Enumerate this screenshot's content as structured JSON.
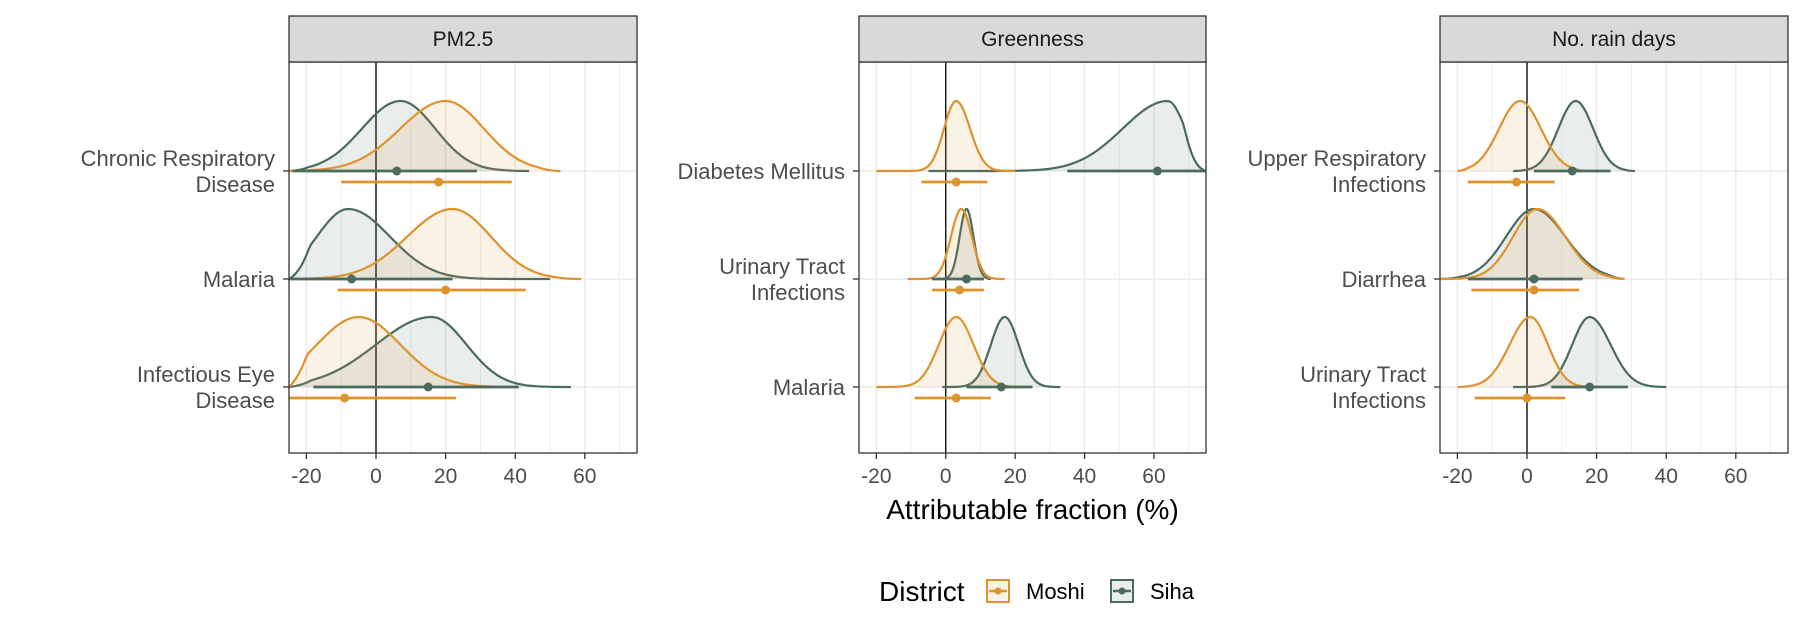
{
  "colors": {
    "Moshi": "#E0922F",
    "Siha": "#4A6B5D",
    "strip_bg": "#D9D9D9",
    "grid": "#EBEBEB"
  },
  "chart_data": {
    "type": "density-ridge with point-interval",
    "xlabel": "Attributable fraction (%)",
    "xlim": [
      -25,
      75
    ],
    "xticks": [
      -20,
      0,
      20,
      40,
      60
    ],
    "grid": true,
    "legend": {
      "title": "District",
      "position": "bottom",
      "entries": [
        "Moshi",
        "Siha"
      ]
    },
    "panels": [
      {
        "title": "PM2.5",
        "categories": [
          "Chronic Respiratory Disease",
          "Malaria",
          "Infectious Eye Disease"
        ],
        "category_lines": [
          [
            "Chronic Respiratory",
            "Disease"
          ],
          [
            "Malaria"
          ],
          [
            "Infectious Eye",
            "Disease"
          ]
        ],
        "rows": [
          {
            "series": [
              {
                "name": "Siha",
                "median": 6,
                "ci": [
                  -24,
                  29
                ],
                "density": {
                  "range": [
                    -25,
                    44
                  ],
                  "peak": 7,
                  "sd_left": 11,
                  "sd_right": 10
                }
              },
              {
                "name": "Moshi",
                "median": 18,
                "ci": [
                  -10,
                  39
                ],
                "density": {
                  "range": [
                    -25,
                    53
                  ],
                  "peak": 20,
                  "sd_left": 13,
                  "sd_right": 11
                }
              }
            ]
          },
          {
            "series": [
              {
                "name": "Siha",
                "median": -7,
                "ci": [
                  -25,
                  22
                ],
                "density": {
                  "range": [
                    -25,
                    50
                  ],
                  "peak": -8,
                  "sd_left": 9,
                  "sd_right": 12
                }
              },
              {
                "name": "Moshi",
                "median": 20,
                "ci": [
                  -11,
                  43
                ],
                "density": {
                  "range": [
                    -25,
                    59
                  ],
                  "peak": 22,
                  "sd_left": 13,
                  "sd_right": 11
                }
              }
            ]
          },
          {
            "series": [
              {
                "name": "Siha",
                "median": 15,
                "ci": [
                  -18,
                  41
                ],
                "density": {
                  "range": [
                    -25,
                    56
                  ],
                  "peak": 16,
                  "sd_left": 16,
                  "sd_right": 10
                }
              },
              {
                "name": "Moshi",
                "median": -9,
                "ci": [
                  -25,
                  23
                ],
                "density": {
                  "range": [
                    -25,
                    41
                  ],
                  "peak": -5,
                  "sd_left": 12,
                  "sd_right": 12
                }
              }
            ]
          }
        ]
      },
      {
        "title": "Greenness",
        "categories": [
          "Diabetes Mellitus",
          "Urinary Tract Infections",
          "Malaria"
        ],
        "category_lines": [
          [
            "Diabetes Mellitus"
          ],
          [
            "Urinary Tract",
            "Infections"
          ],
          [
            "Malaria"
          ]
        ],
        "rows": [
          {
            "series": [
              {
                "name": "Siha",
                "median": 61,
                "ci": [
                  35,
                  75
                ],
                "density": {
                  "range": [
                    -5,
                    75
                  ],
                  "peak": 64,
                  "sd_left": 13,
                  "sd_right": 5
                }
              },
              {
                "name": "Moshi",
                "median": 3,
                "ci": [
                  -7,
                  12
                ],
                "density": {
                  "range": [
                    -20,
                    20
                  ],
                  "peak": 3,
                  "sd_left": 3.5,
                  "sd_right": 4
                }
              }
            ]
          },
          {
            "series": [
              {
                "name": "Siha",
                "median": 6,
                "ci": [
                  -4,
                  11
                ],
                "density": {
                  "range": [
                    -2,
                    13
                  ],
                  "peak": 6,
                  "sd_left": 2,
                  "sd_right": 2
                }
              },
              {
                "name": "Moshi",
                "median": 4,
                "ci": [
                  -4,
                  11
                ],
                "density": {
                  "range": [
                    -11,
                    17
                  ],
                  "peak": 4.5,
                  "sd_left": 3,
                  "sd_right": 3
                }
              }
            ]
          },
          {
            "series": [
              {
                "name": "Siha",
                "median": 16,
                "ci": [
                  6,
                  25
                ],
                "density": {
                  "range": [
                    -1,
                    33
                  ],
                  "peak": 17,
                  "sd_left": 4,
                  "sd_right": 4
                }
              },
              {
                "name": "Moshi",
                "median": 3,
                "ci": [
                  -9,
                  13
                ],
                "density": {
                  "range": [
                    -20,
                    23
                  ],
                  "peak": 3,
                  "sd_left": 5,
                  "sd_right": 5
                }
              }
            ]
          }
        ]
      },
      {
        "title": "No. rain days",
        "categories": [
          "Upper Respiratory Infections",
          "Diarrhea",
          "Urinary Tract Infections"
        ],
        "category_lines": [
          [
            "Upper Respiratory",
            "Infections"
          ],
          [
            "Diarrhea"
          ],
          [
            "Urinary Tract",
            "Infections"
          ]
        ],
        "rows": [
          {
            "series": [
              {
                "name": "Siha",
                "median": 13,
                "ci": [
                  2,
                  24
                ],
                "density": {
                  "range": [
                    -4,
                    31
                  ],
                  "peak": 14,
                  "sd_left": 5,
                  "sd_right": 5
                }
              },
              {
                "name": "Moshi",
                "median": -3,
                "ci": [
                  -17,
                  8
                ],
                "density": {
                  "range": [
                    -20,
                    17
                  ],
                  "peak": -2,
                  "sd_left": 6,
                  "sd_right": 6
                }
              }
            ]
          },
          {
            "series": [
              {
                "name": "Siha",
                "median": 2,
                "ci": [
                  -17,
                  16
                ],
                "density": {
                  "range": [
                    -25,
                    28
                  ],
                  "peak": 2,
                  "sd_left": 8,
                  "sd_right": 9
                }
              },
              {
                "name": "Moshi",
                "median": 2,
                "ci": [
                  -16,
                  15
                ],
                "density": {
                  "range": [
                    -25,
                    28
                  ],
                  "peak": 3,
                  "sd_left": 7,
                  "sd_right": 8
                }
              }
            ]
          },
          {
            "series": [
              {
                "name": "Siha",
                "median": 18,
                "ci": [
                  7,
                  29
                ],
                "density": {
                  "range": [
                    -4,
                    40
                  ],
                  "peak": 18,
                  "sd_left": 5,
                  "sd_right": 6
                }
              },
              {
                "name": "Moshi",
                "median": 0,
                "ci": [
                  -15,
                  11
                ],
                "density": {
                  "range": [
                    -20,
                    20
                  ],
                  "peak": 1,
                  "sd_left": 6,
                  "sd_right": 5
                }
              }
            ]
          }
        ]
      }
    ]
  }
}
